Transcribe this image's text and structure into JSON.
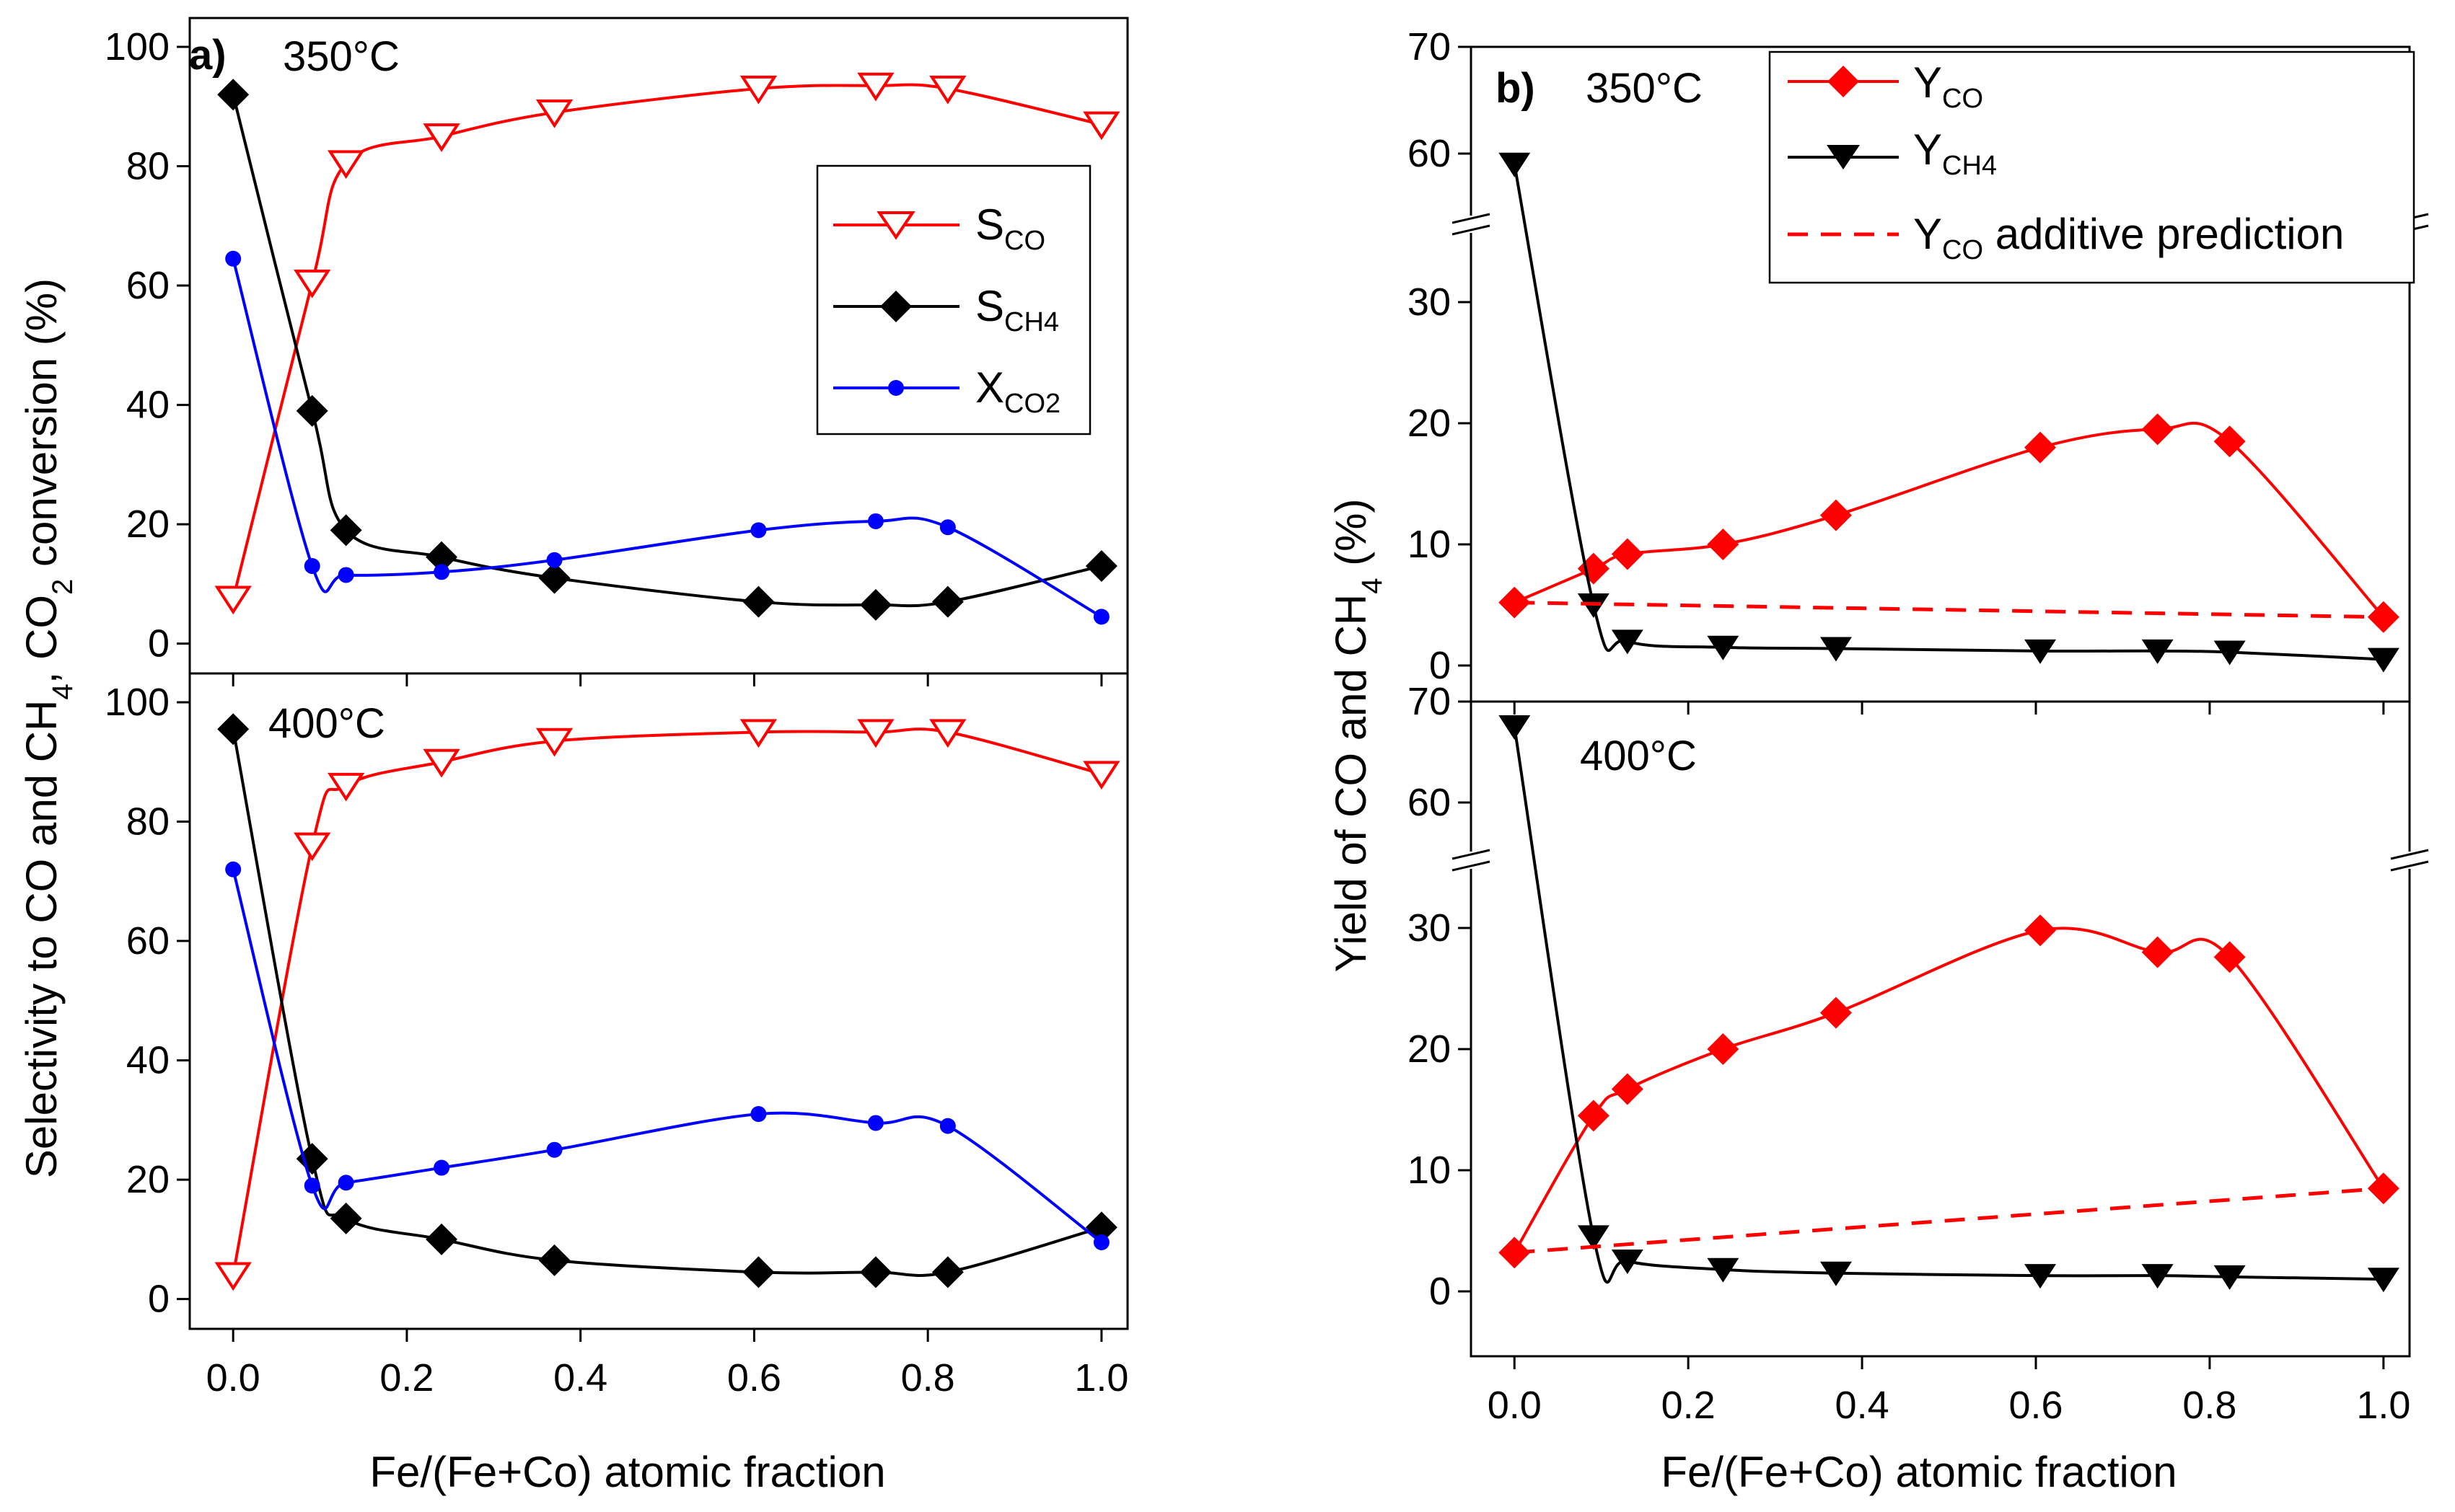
{
  "x_axis_label": "Fe/(Fe+Co) atomic fraction",
  "chart_data": [
    {
      "id": "a",
      "type": "line",
      "panel_label": "a)",
      "ylabel": {
        "pre": "Selectivity to CO and CH",
        "s1": "4",
        "mid": ", CO",
        "s2": "2",
        "post": " conversion (%)"
      },
      "xticks": [
        "0.0",
        "0.2",
        "0.4",
        "0.6",
        "0.8",
        "1.0"
      ],
      "xlim": [
        -0.05,
        1.03
      ],
      "legend_position": "upper-right of top subplot",
      "legend": [
        {
          "key": "S",
          "sub": "CO",
          "series": "S_CO",
          "color": "#ff0000",
          "marker": "triangle-down-open"
        },
        {
          "key": "S",
          "sub": "CH4",
          "series": "S_CH4",
          "color": "#000000",
          "marker": "diamond"
        },
        {
          "key": "X",
          "sub": "CO2",
          "series": "X_CO2",
          "color": "#0000ff",
          "marker": "circle-small"
        }
      ],
      "subplots": [
        {
          "temperature": "350°C",
          "ylim": [
            -5,
            100
          ],
          "yticks": [
            "0",
            "20",
            "40",
            "60",
            "80",
            "100"
          ],
          "x": [
            0.0,
            0.091,
            0.13,
            0.24,
            0.37,
            0.605,
            0.74,
            0.823,
            1.0
          ],
          "series": [
            {
              "name": "S_CO",
              "values": [
                7.5,
                60.5,
                80.5,
                85,
                89,
                93,
                93.5,
                93,
                87
              ]
            },
            {
              "name": "S_CH4",
              "values": [
                92,
                39,
                19,
                14.5,
                11,
                7,
                6.5,
                7,
                13
              ]
            },
            {
              "name": "X_CO2",
              "values": [
                64.5,
                13,
                11.5,
                12,
                14,
                19,
                20.5,
                19.5,
                4.5
              ]
            }
          ]
        },
        {
          "temperature": "400°C",
          "ylim": [
            -5,
            100
          ],
          "yticks": [
            "0",
            "20",
            "40",
            "60",
            "80",
            "100"
          ],
          "x": [
            0.0,
            0.091,
            0.13,
            0.24,
            0.37,
            0.605,
            0.74,
            0.823,
            1.0
          ],
          "series": [
            {
              "name": "S_CO",
              "values": [
                4,
                76,
                86,
                90,
                93.5,
                95,
                95,
                95,
                88
              ]
            },
            {
              "name": "S_CH4",
              "values": [
                95.5,
                23.5,
                13.5,
                10,
                6.5,
                4.5,
                4.5,
                4.5,
                12
              ]
            },
            {
              "name": "X_CO2",
              "values": [
                72,
                19,
                19.5,
                22,
                25,
                31,
                29.5,
                29,
                9.5
              ]
            }
          ]
        }
      ]
    },
    {
      "id": "b",
      "type": "line",
      "panel_label": "b)",
      "ylabel": {
        "pre": "Yield of CO and CH",
        "s1": "4",
        "post": " (%)"
      },
      "xticks": [
        "0.0",
        "0.2",
        "0.4",
        "0.6",
        "0.8",
        "1.0"
      ],
      "xlim": [
        -0.05,
        1.03
      ],
      "axis_break": "broken y-axis between 35 and 55",
      "legend_position": "top-right of top subplot",
      "legend": [
        {
          "key": "Y",
          "sub": "CO",
          "tail": "",
          "series": "Y_CO",
          "color": "#ff0000",
          "marker": "diamond"
        },
        {
          "key": "Y",
          "sub": "CH4",
          "tail": "",
          "series": "Y_CH4",
          "color": "#000000",
          "marker": "triangle-down"
        },
        {
          "key": "Y",
          "sub": "CO",
          "tail": " additive prediction",
          "series": "Y_CO_additive",
          "color": "#ff0000",
          "marker": "dashed"
        }
      ],
      "subplots": [
        {
          "temperature": "350°C",
          "ylim": [
            -2,
            70
          ],
          "yticks": [
            "0",
            "10",
            "20",
            "30",
            "60",
            "70"
          ],
          "x": [
            0.0,
            0.091,
            0.13,
            0.24,
            0.37,
            0.605,
            0.74,
            0.823,
            1.0
          ],
          "series": [
            {
              "name": "Y_CO",
              "values": [
                5.2,
                8,
                9.2,
                10,
                12.4,
                18,
                19.5,
                18.5,
                4
              ]
            },
            {
              "name": "Y_CH4",
              "values": [
                59,
                5,
                2,
                1.5,
                1.4,
                1.2,
                1.2,
                1.1,
                0.5
              ]
            },
            {
              "name": "Y_CO_additive",
              "x": [
                0.0,
                1.0
              ],
              "values": [
                5.2,
                4.0
              ]
            }
          ]
        },
        {
          "temperature": "400°C",
          "ylim": [
            -5,
            70
          ],
          "yticks": [
            "0",
            "10",
            "20",
            "30",
            "60",
            "70"
          ],
          "x": [
            0.0,
            0.091,
            0.13,
            0.24,
            0.37,
            0.605,
            0.74,
            0.823,
            1.0
          ],
          "series": [
            {
              "name": "Y_CO",
              "values": [
                3.2,
                14.5,
                16.7,
                20,
                23,
                29.8,
                28,
                27.6,
                8.5
              ]
            },
            {
              "name": "Y_CH4",
              "values": [
                67.5,
                4.5,
                2.5,
                1.8,
                1.5,
                1.3,
                1.3,
                1.2,
                1.0
              ]
            },
            {
              "name": "Y_CO_additive",
              "x": [
                0.0,
                1.0
              ],
              "values": [
                3.2,
                8.5
              ]
            }
          ]
        }
      ]
    }
  ]
}
